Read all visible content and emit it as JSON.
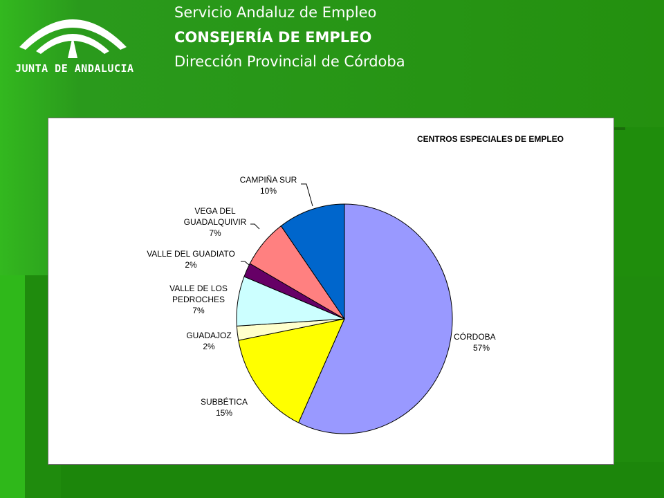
{
  "header": {
    "logo_text": "JUNTA DE ANDALUCIA",
    "line1": "Servicio Andaluz de Empleo",
    "line2": "CONSEJERÍA DE EMPLEO",
    "line3": "Dirección Provincial de Córdoba"
  },
  "colors": {
    "background": "#2a9a1c",
    "header_text": "#ffffff"
  },
  "chart_data": {
    "type": "pie",
    "title": "CENTROS ESPECIALES DE EMPLEO",
    "legend": "none",
    "start_angle_deg": 90,
    "direction": "clockwise",
    "slices": [
      {
        "label": "CÓRDOBA",
        "value": 57,
        "pct": "57%",
        "color": "#9999ff"
      },
      {
        "label": "SUBBÉTICA",
        "value": 15,
        "pct": "15%",
        "color": "#ffff00"
      },
      {
        "label": "GUADAJOZ",
        "value": 2,
        "pct": "2%",
        "color": "#ffffcc"
      },
      {
        "label": "VALLE DE LOS PEDROCHES",
        "value": 7,
        "pct": "7%",
        "color": "#ccffff"
      },
      {
        "label": "VALLE DEL GUADIATO",
        "value": 2,
        "pct": "2%",
        "color": "#660066"
      },
      {
        "label": "VEGA DEL GUADALQUIVIR",
        "value": 7,
        "pct": "7%",
        "color": "#ff8080"
      },
      {
        "label": "CAMPIÑA SUR",
        "value": 10,
        "pct": "10%",
        "color": "#0066cc"
      }
    ]
  }
}
